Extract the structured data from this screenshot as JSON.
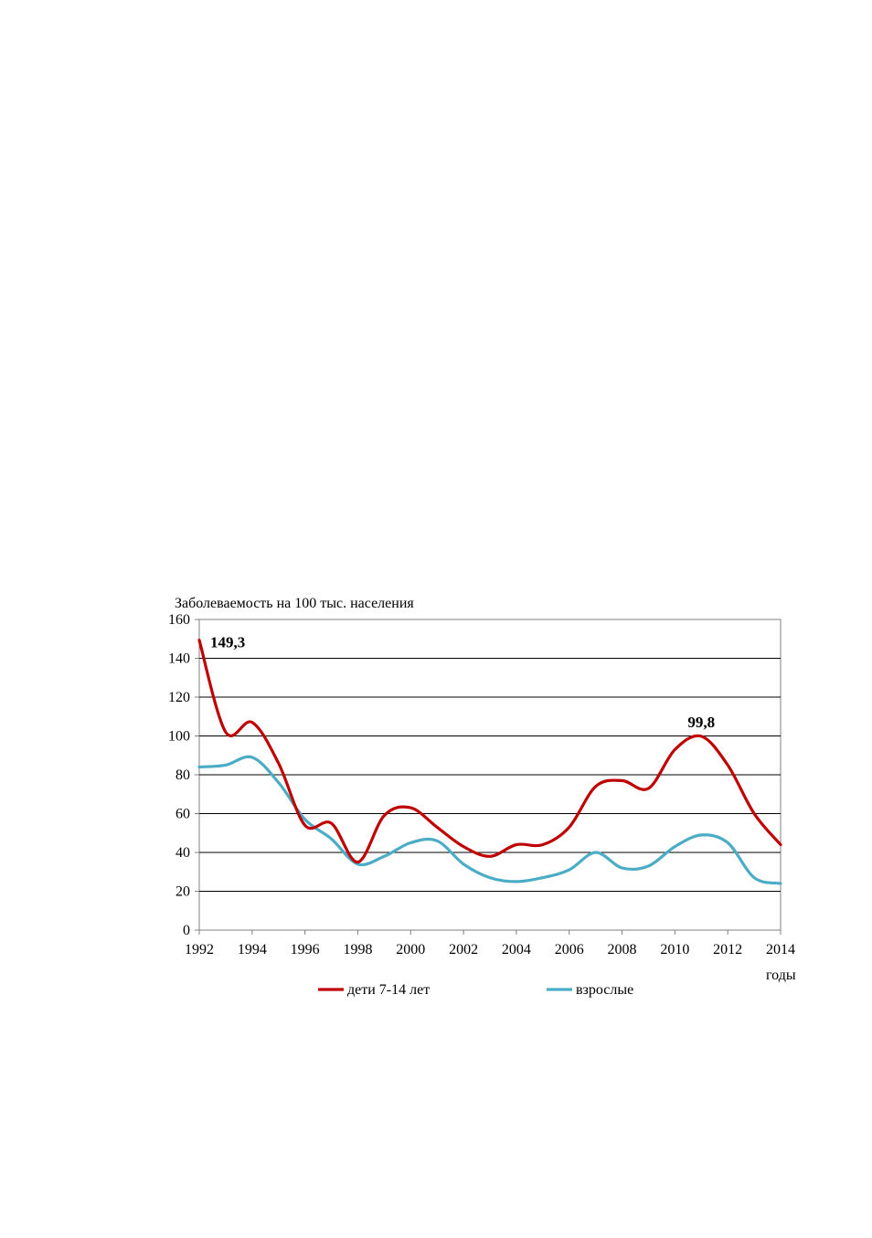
{
  "chart_data": {
    "type": "line",
    "title": "",
    "ylabel": "Заболеваемость на 100 тыс. населения",
    "xlabel": "годы",
    "ylim": [
      0,
      160
    ],
    "yticks": [
      0,
      20,
      40,
      60,
      80,
      100,
      120,
      140,
      160
    ],
    "xlim": [
      1992,
      2014
    ],
    "xticks": [
      1992,
      1994,
      1996,
      1998,
      2000,
      2002,
      2004,
      2006,
      2008,
      2010,
      2012,
      2014
    ],
    "grid": "horizontal",
    "legend_position": "bottom",
    "x": [
      1992,
      1993,
      1994,
      1995,
      1996,
      1997,
      1998,
      1999,
      2000,
      2001,
      2002,
      2003,
      2004,
      2005,
      2006,
      2007,
      2008,
      2009,
      2010,
      2011,
      2012,
      2013,
      2014
    ],
    "series": [
      {
        "name": "дети 7-14 лет",
        "color": "#C00000",
        "values": [
          149.3,
          102,
          107,
          86,
          54,
          55,
          35,
          59,
          63,
          53,
          43,
          38,
          44,
          44,
          53,
          74,
          77,
          73,
          93,
          99.8,
          85,
          60,
          44
        ]
      },
      {
        "name": "взрослые",
        "color": "#4BACC6",
        "values": [
          84,
          85,
          89,
          76,
          57,
          47,
          34,
          38,
          45,
          46,
          34,
          27,
          25,
          27,
          31,
          40,
          32,
          33,
          43,
          49,
          45,
          27,
          24
        ]
      }
    ],
    "annotations": [
      {
        "text": "149,3",
        "series": 0,
        "x": 1992
      },
      {
        "text": "99,8",
        "series": 0,
        "x": 2011
      }
    ]
  }
}
